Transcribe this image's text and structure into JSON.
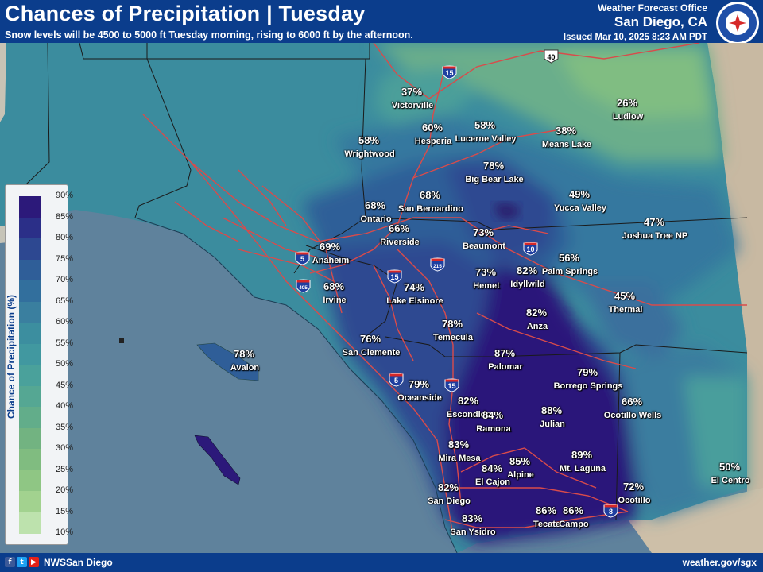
{
  "header": {
    "title": "Chances of Precipitation | Tuesday",
    "subtitle": "Snow levels will be 4500 to 5000 ft Tuesday morning, rising to 6000 ft by the afternoon.",
    "office_line1": "Weather Forecast Office",
    "office_line2": "San Diego, CA",
    "issued": "Issued Mar 10, 2025 8:23 AM PDT",
    "logo_text": "NATIONAL WEATHER SERVICE"
  },
  "legend": {
    "title": "Chance of Precipitation (%)",
    "ticks": [
      "90%",
      "85%",
      "80%",
      "75%",
      "70%",
      "65%",
      "60%",
      "55%",
      "50%",
      "45%",
      "40%",
      "35%",
      "30%",
      "25%",
      "20%",
      "15%",
      "10%"
    ],
    "colors": [
      "#2c197a",
      "#2b2f88",
      "#2d4891",
      "#2f5e98",
      "#326f9d",
      "#3a7f9f",
      "#3c8e9f",
      "#4198a0",
      "#4aa19b",
      "#55a793",
      "#62ad8a",
      "#72b381",
      "#80bc80",
      "#8fc684",
      "#a2d28f",
      "#bde2ad",
      "#d9f0cf"
    ]
  },
  "cities": [
    {
      "name": "Victorville",
      "pct": "37%"
    },
    {
      "name": "Ludlow",
      "pct": "26%"
    },
    {
      "name": "Hesperia",
      "pct": "60%"
    },
    {
      "name": "Lucerne Valley",
      "pct": "58%"
    },
    {
      "name": "Means Lake",
      "pct": "38%"
    },
    {
      "name": "Wrightwood",
      "pct": "58%"
    },
    {
      "name": "Big Bear Lake",
      "pct": "78%"
    },
    {
      "name": "San Bernardino",
      "pct": "68%"
    },
    {
      "name": "Ontario",
      "pct": "68%"
    },
    {
      "name": "Yucca Valley",
      "pct": "49%"
    },
    {
      "name": "Riverside",
      "pct": "66%"
    },
    {
      "name": "Anaheim",
      "pct": "69%"
    },
    {
      "name": "Beaumont",
      "pct": "73%"
    },
    {
      "name": "Joshua Tree NP",
      "pct": "47%"
    },
    {
      "name": "Palm Springs",
      "pct": "56%"
    },
    {
      "name": "Irvine",
      "pct": "68%"
    },
    {
      "name": "Lake Elsinore",
      "pct": "74%"
    },
    {
      "name": "Hemet",
      "pct": "73%"
    },
    {
      "name": "Idyllwild",
      "pct": "82%"
    },
    {
      "name": "Thermal",
      "pct": "45%"
    },
    {
      "name": "Anza",
      "pct": "82%"
    },
    {
      "name": "Temecula",
      "pct": "78%"
    },
    {
      "name": "San Clemente",
      "pct": "76%"
    },
    {
      "name": "Avalon",
      "pct": "78%"
    },
    {
      "name": "Palomar",
      "pct": "87%"
    },
    {
      "name": "Borrego Springs",
      "pct": "79%"
    },
    {
      "name": "Oceanside",
      "pct": "79%"
    },
    {
      "name": "Escondido",
      "pct": "82%"
    },
    {
      "name": "Ramona",
      "pct": "84%"
    },
    {
      "name": "Julian",
      "pct": "88%"
    },
    {
      "name": "Ocotillo Wells",
      "pct": "66%"
    },
    {
      "name": "Mira Mesa",
      "pct": "83%"
    },
    {
      "name": "Alpine",
      "pct": "85%"
    },
    {
      "name": "Mt. Laguna",
      "pct": "89%"
    },
    {
      "name": "El Cajon",
      "pct": "84%"
    },
    {
      "name": "San Diego",
      "pct": "82%"
    },
    {
      "name": "El Centro",
      "pct": "50%"
    },
    {
      "name": "Ocotillo",
      "pct": "72%"
    },
    {
      "name": "Tecate",
      "pct": "86%"
    },
    {
      "name": "Campo",
      "pct": "86%"
    },
    {
      "name": "San Ysidro",
      "pct": "83%"
    }
  ],
  "highways": [
    {
      "label": "40",
      "type": "us"
    },
    {
      "label": "15",
      "type": "interstate"
    },
    {
      "label": "10",
      "type": "interstate"
    },
    {
      "label": "5",
      "type": "interstate"
    },
    {
      "label": "405",
      "type": "interstate"
    },
    {
      "label": "15",
      "type": "interstate"
    },
    {
      "label": "215",
      "type": "interstate"
    },
    {
      "label": "5",
      "type": "interstate"
    },
    {
      "label": "15",
      "type": "interstate"
    },
    {
      "label": "8",
      "type": "interstate"
    }
  ],
  "footer": {
    "handle": "NWSSan Diego",
    "website": "weather.gov/sgx",
    "social_icons": [
      "facebook-icon",
      "twitter-icon",
      "youtube-icon"
    ]
  }
}
